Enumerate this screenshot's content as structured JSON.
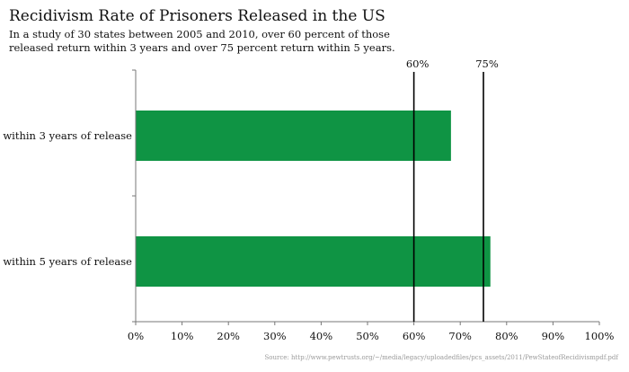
{
  "chart_data": {
    "type": "bar",
    "orientation": "horizontal",
    "title": "Recidivism Rate of Prisoners Released in the US",
    "subtitle": "In a study of 30 states between 2005 and 2010, over 60 percent of those\nreleased return within 3 years and over 75 percent return within 5 years.",
    "categories": [
      "within 3 years of release",
      "within 5 years of release"
    ],
    "values": [
      68,
      76.5
    ],
    "xlim": [
      0,
      100
    ],
    "xticks": [
      "0%",
      "10%",
      "20%",
      "30%",
      "40%",
      "50%",
      "60%",
      "70%",
      "80%",
      "90%",
      "100%"
    ],
    "reference_lines": [
      {
        "label": "60%",
        "value": 60
      },
      {
        "label": "75%",
        "value": 75
      }
    ],
    "bar_color": "#0f9444",
    "grid": false,
    "source": "Source: http://www.pewtrusts.org/~/media/legacy/uploadedfiles/pcs_assets/2011/PewStateofRecidivismpdf.pdf"
  }
}
